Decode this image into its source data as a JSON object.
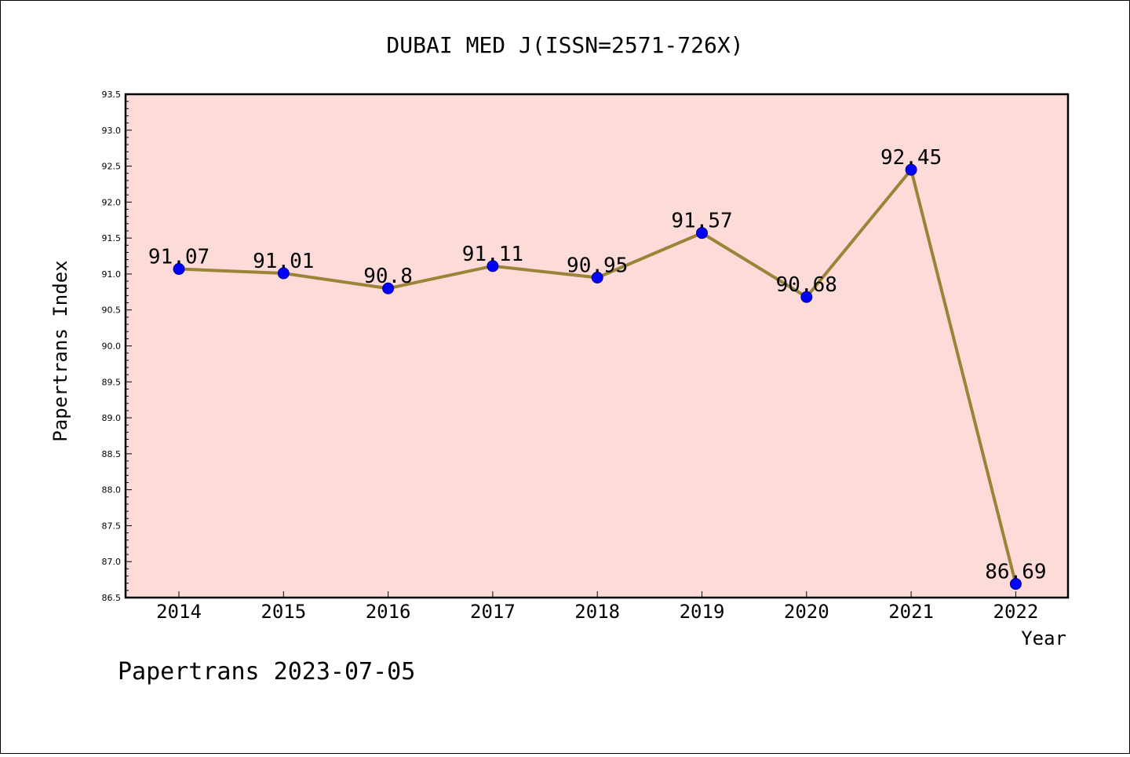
{
  "chart_data": {
    "type": "line",
    "title": "DUBAI MED J(ISSN=2571-726X)",
    "xlabel": "Year",
    "ylabel": "Papertrans Index",
    "x": [
      "2014",
      "2015",
      "2016",
      "2017",
      "2018",
      "2019",
      "2020",
      "2021",
      "2022"
    ],
    "series": [
      {
        "values": [
          91.07,
          91.01,
          90.8,
          91.11,
          90.95,
          91.57,
          90.68,
          92.45,
          86.69
        ],
        "labels": [
          "91.07",
          "91.01",
          "90.8",
          "91.11",
          "90.95",
          "91.57",
          "90.68",
          "92.45",
          "86.69"
        ]
      }
    ],
    "ylim": [
      86.5,
      93.5
    ],
    "yticks": [
      "86.5",
      "87.0",
      "87.5",
      "88.0",
      "88.5",
      "89.0",
      "89.5",
      "90.0",
      "90.5",
      "91.0",
      "91.5",
      "92.0",
      "92.5",
      "93.0",
      "93.5"
    ],
    "grid": false,
    "colors": {
      "plot_background": "#fddbd8",
      "line": "#9a8437",
      "marker": "#0000ff",
      "marker_edge": "#00008b"
    }
  },
  "footer": "Papertrans 2023-07-05"
}
